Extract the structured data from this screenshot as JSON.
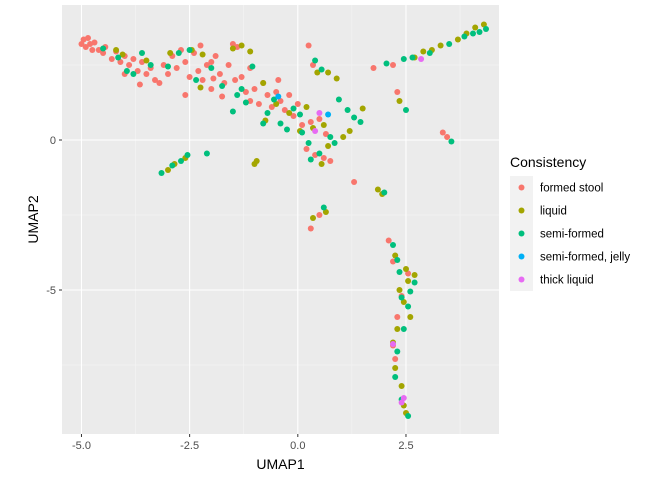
{
  "chart_data": {
    "type": "scatter",
    "title": "",
    "xlabel": "UMAP1",
    "ylabel": "UMAP2",
    "xlim": [
      -5.45,
      4.65
    ],
    "ylim": [
      -9.8,
      4.5
    ],
    "xticks": [
      -5.0,
      -2.5,
      0.0,
      2.5
    ],
    "xtick_labels": [
      "-5.0",
      "-2.5",
      "0.0",
      "2.5"
    ],
    "yticks": [
      -5,
      0
    ],
    "ytick_labels": [
      "-5",
      "0"
    ],
    "grid": true,
    "background": "#EBEBEB",
    "legend": {
      "title": "Consistency",
      "position": "right"
    },
    "series": [
      {
        "name": "formed stool",
        "color": "#F8766D",
        "points": [
          [
            -5.0,
            3.2
          ],
          [
            -4.95,
            3.35
          ],
          [
            -4.9,
            3.1
          ],
          [
            -4.85,
            3.4
          ],
          [
            -4.8,
            3.2
          ],
          [
            -4.75,
            3.0
          ],
          [
            -4.7,
            3.25
          ],
          [
            -4.6,
            3.0
          ],
          [
            -4.5,
            2.9
          ],
          [
            -4.45,
            3.1
          ],
          [
            -4.3,
            2.7
          ],
          [
            -4.2,
            2.95
          ],
          [
            -4.1,
            2.6
          ],
          [
            -4.0,
            2.8
          ],
          [
            -3.9,
            2.5
          ],
          [
            -3.8,
            2.7
          ],
          [
            -3.7,
            2.3
          ],
          [
            -3.6,
            2.6
          ],
          [
            -3.5,
            2.2
          ],
          [
            -3.4,
            2.4
          ],
          [
            -3.3,
            2.0
          ],
          [
            -3.2,
            1.9
          ],
          [
            -3.1,
            2.5
          ],
          [
            -3.0,
            2.2
          ],
          [
            -2.9,
            2.8
          ],
          [
            -2.8,
            2.4
          ],
          [
            -2.7,
            3.0
          ],
          [
            -2.6,
            2.6
          ],
          [
            -2.5,
            2.1
          ],
          [
            -2.4,
            2.9
          ],
          [
            -2.3,
            2.3
          ],
          [
            -2.2,
            2.0
          ],
          [
            -2.1,
            2.5
          ],
          [
            -2.0,
            1.7
          ],
          [
            -1.9,
            2.8
          ],
          [
            -1.8,
            2.2
          ],
          [
            -1.7,
            1.9
          ],
          [
            -1.6,
            2.5
          ],
          [
            -1.5,
            3.2
          ],
          [
            -1.45,
            2.0
          ],
          [
            -1.4,
            3.1
          ],
          [
            -1.3,
            2.1
          ],
          [
            -1.2,
            1.6
          ],
          [
            -1.1,
            2.4
          ],
          [
            -1.0,
            1.7
          ],
          [
            -0.9,
            1.2
          ],
          [
            -0.8,
            1.9
          ],
          [
            -0.7,
            1.5
          ],
          [
            -0.6,
            1.1
          ],
          [
            -0.5,
            1.6
          ],
          [
            -0.4,
            1.3
          ],
          [
            -0.3,
            1.0
          ],
          [
            -0.2,
            1.5
          ],
          [
            -0.1,
            0.8
          ],
          [
            0.0,
            1.2
          ],
          [
            0.1,
            0.5
          ],
          [
            0.2,
            -0.3
          ],
          [
            0.3,
            0.6
          ],
          [
            0.35,
            2.5
          ],
          [
            0.4,
            -0.5
          ],
          [
            0.5,
            0.7
          ],
          [
            0.6,
            -0.6
          ],
          [
            0.65,
            0.2
          ],
          [
            0.75,
            -0.7
          ],
          [
            -2.0,
            2.6
          ],
          [
            -3.65,
            1.85
          ],
          [
            -1.95,
            2.05
          ],
          [
            -2.6,
            1.5
          ],
          [
            -4.0,
            2.2
          ],
          [
            -2.25,
            3.15
          ],
          [
            -1.75,
            1.45
          ],
          [
            -1.1,
            1.3
          ],
          [
            -0.45,
            2.0
          ],
          [
            0.25,
            3.15
          ],
          [
            1.75,
            2.4
          ],
          [
            2.2,
            2.5
          ],
          [
            2.3,
            1.6
          ],
          [
            1.3,
            -1.4
          ],
          [
            0.5,
            -2.5
          ],
          [
            0.3,
            -2.95
          ],
          [
            3.35,
            0.25
          ],
          [
            3.45,
            0.1
          ],
          [
            2.1,
            -3.35
          ],
          [
            2.2,
            -4.05
          ],
          [
            2.3,
            -5.9
          ],
          [
            2.2,
            -6.85
          ],
          [
            2.25,
            -7.3
          ],
          [
            2.4,
            -5.2
          ],
          [
            2.55,
            -4.45
          ]
        ]
      },
      {
        "name": "liquid",
        "color": "#A3A500",
        "points": [
          [
            -4.2,
            3.0
          ],
          [
            -4.05,
            2.85
          ],
          [
            -3.5,
            2.65
          ],
          [
            -2.95,
            2.9
          ],
          [
            -2.45,
            3.0
          ],
          [
            -2.2,
            2.85
          ],
          [
            -1.5,
            3.05
          ],
          [
            -1.3,
            3.15
          ],
          [
            -1.1,
            2.95
          ],
          [
            -0.8,
            1.9
          ],
          [
            -0.5,
            1.2
          ],
          [
            -0.2,
            0.9
          ],
          [
            0.05,
            0.3
          ],
          [
            0.2,
            1.1
          ],
          [
            0.35,
            0.4
          ],
          [
            0.6,
            0.5
          ],
          [
            0.7,
            -0.2
          ],
          [
            0.55,
            -0.8
          ],
          [
            0.45,
            2.25
          ],
          [
            0.7,
            2.25
          ],
          [
            -1.0,
            -0.8
          ],
          [
            -0.95,
            -0.7
          ],
          [
            -2.6,
            -0.6
          ],
          [
            -2.85,
            -0.8
          ],
          [
            -3.0,
            -1.0
          ],
          [
            1.05,
            0.1
          ],
          [
            1.2,
            0.3
          ],
          [
            1.5,
            1.05
          ],
          [
            2.35,
            1.3
          ],
          [
            2.7,
            2.75
          ],
          [
            2.9,
            2.95
          ],
          [
            3.1,
            3.0
          ],
          [
            3.3,
            3.15
          ],
          [
            3.7,
            3.35
          ],
          [
            3.9,
            3.55
          ],
          [
            4.1,
            3.75
          ],
          [
            4.3,
            3.85
          ],
          [
            1.85,
            -1.65
          ],
          [
            1.95,
            -1.8
          ],
          [
            0.35,
            -2.6
          ],
          [
            0.65,
            -2.4
          ],
          [
            2.25,
            -3.85
          ],
          [
            2.5,
            -4.3
          ],
          [
            2.55,
            -4.7
          ],
          [
            2.7,
            -4.5
          ],
          [
            2.35,
            -5.0
          ],
          [
            2.45,
            -5.4
          ],
          [
            2.6,
            -5.9
          ],
          [
            2.3,
            -6.3
          ],
          [
            2.2,
            -6.75
          ],
          [
            2.25,
            -7.6
          ],
          [
            2.4,
            -8.2
          ],
          [
            2.45,
            -8.85
          ],
          [
            2.5,
            -9.1
          ],
          [
            0.9,
            2.05
          ],
          [
            -2.25,
            1.75
          ],
          [
            -0.75,
            0.65
          ]
        ]
      },
      {
        "name": "semi-formed",
        "color": "#00BF7D",
        "points": [
          [
            -4.5,
            3.05
          ],
          [
            -4.15,
            2.75
          ],
          [
            -3.95,
            2.3
          ],
          [
            -3.8,
            2.2
          ],
          [
            -3.6,
            2.9
          ],
          [
            -3.4,
            2.5
          ],
          [
            -3.0,
            2.45
          ],
          [
            -2.75,
            2.9
          ],
          [
            -2.5,
            3.0
          ],
          [
            -2.35,
            2.0
          ],
          [
            -2.0,
            2.4
          ],
          [
            -1.75,
            1.8
          ],
          [
            -1.4,
            1.5
          ],
          [
            -1.3,
            1.7
          ],
          [
            -1.05,
            2.45
          ],
          [
            -0.8,
            0.55
          ],
          [
            -0.7,
            0.9
          ],
          [
            -0.55,
            1.35
          ],
          [
            -0.4,
            0.55
          ],
          [
            -0.25,
            0.35
          ],
          [
            -0.1,
            1.05
          ],
          [
            0.1,
            0.25
          ],
          [
            0.25,
            -0.1
          ],
          [
            0.4,
            2.65
          ],
          [
            0.55,
            2.35
          ],
          [
            0.75,
            0.1
          ],
          [
            0.85,
            -0.1
          ],
          [
            0.95,
            1.35
          ],
          [
            1.15,
            1.0
          ],
          [
            1.3,
            0.75
          ],
          [
            -2.1,
            -0.45
          ],
          [
            -2.55,
            -0.5
          ],
          [
            -2.7,
            -0.7
          ],
          [
            -2.9,
            -0.85
          ],
          [
            -3.15,
            -1.1
          ],
          [
            0.3,
            -0.65
          ],
          [
            0.5,
            -0.45
          ],
          [
            2.05,
            2.55
          ],
          [
            2.45,
            2.7
          ],
          [
            2.65,
            2.75
          ],
          [
            3.05,
            2.9
          ],
          [
            3.5,
            3.2
          ],
          [
            3.85,
            3.45
          ],
          [
            4.05,
            3.55
          ],
          [
            4.2,
            3.6
          ],
          [
            4.35,
            3.7
          ],
          [
            3.55,
            -0.05
          ],
          [
            2.0,
            -1.75
          ],
          [
            0.6,
            -2.25
          ],
          [
            2.2,
            -3.5
          ],
          [
            2.3,
            -4.0
          ],
          [
            2.35,
            -4.4
          ],
          [
            2.6,
            -5.05
          ],
          [
            2.7,
            -4.75
          ],
          [
            2.55,
            -5.55
          ],
          [
            2.4,
            -5.25
          ],
          [
            2.45,
            -6.3
          ],
          [
            2.3,
            -7.05
          ],
          [
            2.25,
            -7.9
          ],
          [
            2.4,
            -8.65
          ],
          [
            2.55,
            -9.2
          ],
          [
            -1.2,
            1.25
          ],
          [
            0.05,
            0.85
          ],
          [
            -1.5,
            0.95
          ],
          [
            2.5,
            1.0
          ],
          [
            1.45,
            0.6
          ]
        ]
      },
      {
        "name": "semi-formed, jelly",
        "color": "#00B0F6",
        "points": [
          [
            -0.45,
            1.45
          ],
          [
            0.7,
            0.85
          ]
        ]
      },
      {
        "name": "thick liquid",
        "color": "#E76BF3",
        "points": [
          [
            0.5,
            0.9
          ],
          [
            0.4,
            0.3
          ],
          [
            2.85,
            2.7
          ],
          [
            2.2,
            -6.8
          ],
          [
            2.4,
            -8.75
          ],
          [
            2.45,
            -8.6
          ]
        ]
      }
    ]
  }
}
